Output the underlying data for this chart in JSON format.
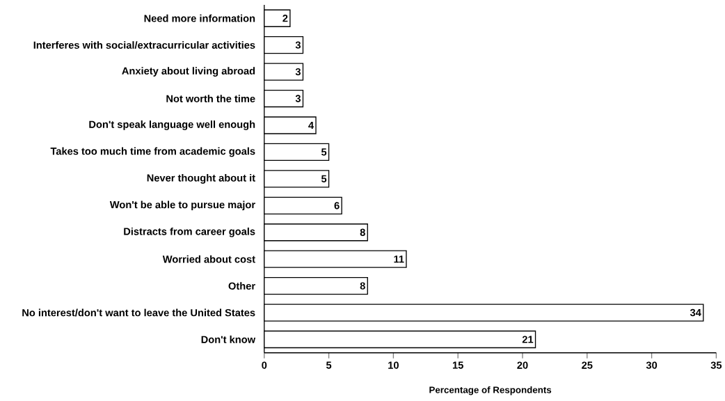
{
  "chart_data": {
    "type": "bar",
    "orientation": "horizontal",
    "xlabel": "Percentage of Respondents",
    "categories": [
      "Need more information",
      "Interferes with social/extracurricular activities",
      "Anxiety about living abroad",
      "Not worth the time",
      "Don't speak language well enough",
      "Takes too much time from academic goals",
      "Never thought about it",
      "Won't be able to pursue major",
      "Distracts from career goals",
      "Worried about cost",
      "Other",
      "No interest/don't want to leave the United States",
      "Don't know"
    ],
    "values": [
      2,
      3,
      3,
      3,
      4,
      5,
      5,
      6,
      8,
      11,
      8,
      34,
      21
    ],
    "color": "#ffffff",
    "xlim": [
      0,
      35
    ],
    "xticks": [
      0,
      5,
      10,
      15,
      20,
      25,
      30,
      35
    ],
    "grid": false,
    "data_labels": true
  }
}
